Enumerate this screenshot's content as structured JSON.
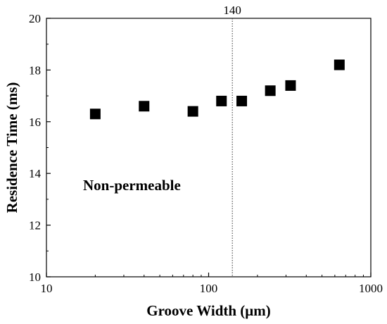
{
  "chart_data": {
    "type": "scatter",
    "title": "",
    "xlabel": "Groove Width (μm)",
    "ylabel": "Residence Time (ms)",
    "x_scale": "log",
    "xlim": [
      10,
      1000
    ],
    "ylim": [
      10,
      20
    ],
    "x_ticks": [
      10,
      100,
      1000
    ],
    "x_tick_labels": [
      "10",
      "100",
      "1000"
    ],
    "y_ticks": [
      10,
      12,
      14,
      16,
      18,
      20
    ],
    "y_tick_labels": [
      "10",
      "12",
      "14",
      "16",
      "18",
      "20"
    ],
    "grid": false,
    "legend": "none",
    "reference_line": {
      "x": 140,
      "label": "140",
      "style": "dotted"
    },
    "annotation": "Non-permeable",
    "marker": {
      "shape": "square",
      "color": "#000000"
    },
    "series": [
      {
        "points": [
          {
            "x": 20,
            "y": 16.3
          },
          {
            "x": 40,
            "y": 16.6
          },
          {
            "x": 80,
            "y": 16.4
          },
          {
            "x": 120,
            "y": 16.8
          },
          {
            "x": 160,
            "y": 16.8
          },
          {
            "x": 240,
            "y": 17.2
          },
          {
            "x": 320,
            "y": 17.4
          },
          {
            "x": 640,
            "y": 18.2
          }
        ]
      }
    ]
  }
}
